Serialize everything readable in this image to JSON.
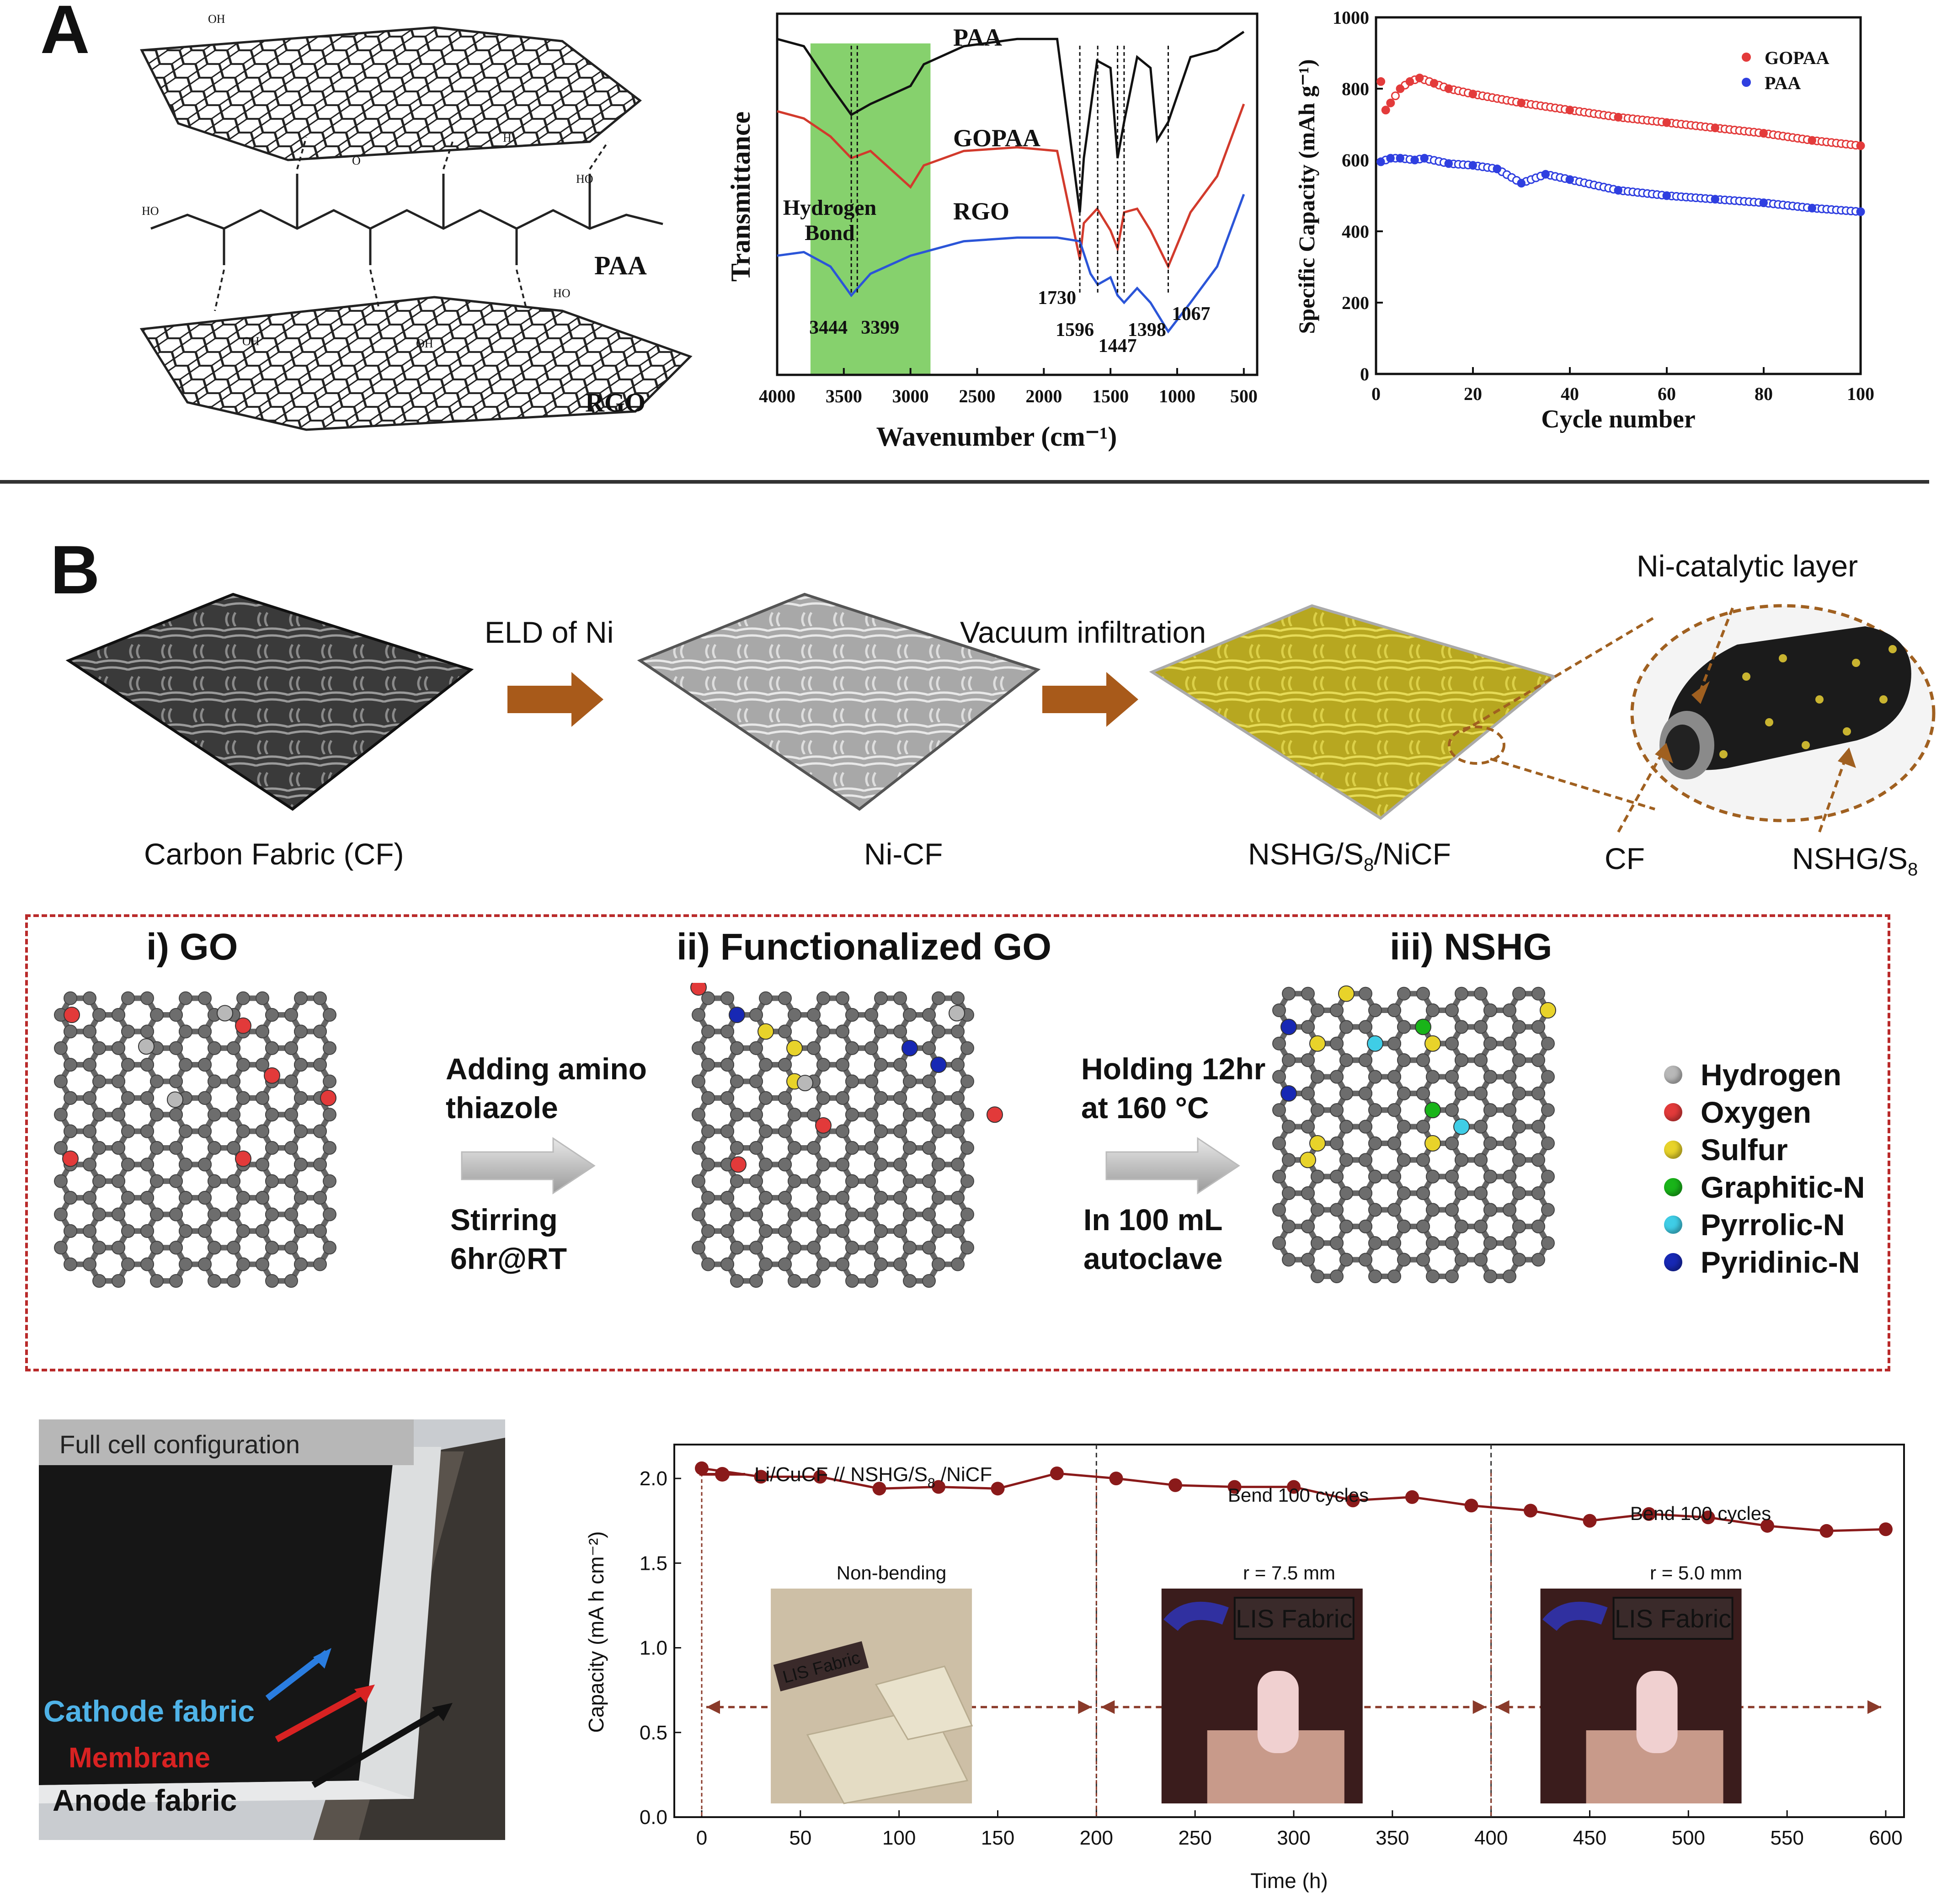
{
  "panelA": {
    "letter": "A",
    "scheme": {
      "labels": {
        "paa": "PAA",
        "rgo": "RGO",
        "oh": "OH",
        "ho": "HO",
        "o": "O",
        "h": "H"
      }
    },
    "ftir": {
      "ylabel": "Transmittance",
      "xlabel": "Wavenumber (cm⁻¹)",
      "xticks": [
        "4000",
        "3500",
        "3000",
        "2500",
        "2000",
        "1500",
        "1000",
        "500"
      ],
      "series_labels": {
        "paa": "PAA",
        "gopaa": "GOPAA",
        "rgo": "RGO"
      },
      "band_label_1": "Hydrogen",
      "band_label_2": "Bond",
      "peaks": [
        "3444",
        "3399",
        "1730",
        "1596",
        "1447",
        "1398",
        "1067"
      ],
      "colors": {
        "paa": "#111111",
        "gopaa": "#d23a2c",
        "rgo": "#2b55d8",
        "band": "#86d16d"
      }
    },
    "cycling": {
      "ylabel": "Specific Capacity (mAh g⁻¹)",
      "xlabel": "Cycle number",
      "yticks": [
        "0",
        "200",
        "400",
        "600",
        "800",
        "1000"
      ],
      "xticks": [
        "0",
        "20",
        "40",
        "60",
        "80",
        "100"
      ],
      "legend": [
        "GOPAA",
        "PAA"
      ],
      "colors": {
        "gopaa": "#e33b3b",
        "paa": "#2f3fe0"
      }
    }
  },
  "panelB": {
    "letter": "B",
    "fabrics": {
      "arrow1": "ELD of Ni",
      "arrow2": "Vacuum infiltration",
      "cf": "Carbon Fabric (CF)",
      "nicf": "Ni-CF",
      "nshg_prefix": "NSHG/S",
      "nshg_sub": "8",
      "nshg_suffix": "/NiCF",
      "ni_layer": "Ni-catalytic layer",
      "cf_short": "CF",
      "nshg_s8_prefix": "NSHG/S",
      "nshg_s8_sub": "8"
    },
    "synthesis": {
      "go": "i) GO",
      "fgo": "ii) Functionalized GO",
      "nshg": "iii) NSHG",
      "step1_line1": "Adding amino",
      "step1_line2": "thiazole",
      "step1_line3": "Stirring",
      "step1_line4": "6hr@RT",
      "step2_line1": "Holding 12hr",
      "step2_line2": "at 160 °C",
      "step2_line3": "In 100 mL",
      "step2_line4": "autoclave",
      "legend": [
        {
          "label": "Hydrogen",
          "color": "#b8b8b8"
        },
        {
          "label": "Oxygen",
          "color": "#e23a3a"
        },
        {
          "label": "Sulfur",
          "color": "#e8d32a"
        },
        {
          "label": "Graphitic-N",
          "color": "#19b419"
        },
        {
          "label": "Pyrrolic-N",
          "color": "#3fcde6"
        },
        {
          "label": "Pyridinic-N",
          "color": "#1728b4"
        }
      ]
    },
    "fullcell": {
      "title": "Full cell configuration",
      "cathode": "Cathode fabric",
      "membrane": "Membrane",
      "anode": "Anode fabric"
    },
    "bend_chart": {
      "legend_prefix": "Li/CuCF // NSHG/S",
      "legend_sub": "8",
      "legend_suffix": " /NiCF",
      "ylabel": "Capacity (mA h cm⁻²)",
      "xlabel": "Time (h)",
      "seg1": "Non-bending",
      "seg2_top": "Bend 100 cycles",
      "seg2_r": "r = 7.5 mm",
      "seg3_top": "Bend 100 cycles",
      "seg3_r": "r = 5.0 mm",
      "led_text": "LIS Fabric",
      "xticks": [
        "0",
        "50",
        "100",
        "150",
        "200",
        "250",
        "300",
        "350",
        "400",
        "450",
        "500",
        "550",
        "600"
      ],
      "yticks": [
        "0.0",
        "0.5",
        "1.0",
        "1.5",
        "2.0"
      ],
      "color": "#8a1a1a"
    }
  },
  "chart_data": [
    {
      "type": "line",
      "xlabel": "Wavenumber (cm⁻¹)",
      "ylabel": "Transmittance",
      "xlim": [
        4000,
        400
      ],
      "series": [
        {
          "name": "PAA",
          "x": [
            4000,
            3800,
            3600,
            3444,
            3300,
            3000,
            2900,
            2600,
            2200,
            1900,
            1730,
            1700,
            1600,
            1500,
            1447,
            1398,
            1300,
            1200,
            1150,
            1067,
            900,
            700,
            500
          ],
          "values": [
            0.93,
            0.91,
            0.8,
            0.72,
            0.75,
            0.8,
            0.86,
            0.91,
            0.93,
            0.93,
            0.45,
            0.6,
            0.87,
            0.85,
            0.6,
            0.7,
            0.88,
            0.85,
            0.65,
            0.7,
            0.88,
            0.9,
            0.95
          ]
        },
        {
          "name": "GOPAA",
          "x": [
            4000,
            3800,
            3600,
            3444,
            3300,
            3000,
            2900,
            2600,
            2200,
            1900,
            1730,
            1700,
            1600,
            1500,
            1447,
            1398,
            1300,
            1200,
            1067,
            900,
            700,
            500
          ],
          "values": [
            0.73,
            0.71,
            0.66,
            0.6,
            0.62,
            0.52,
            0.58,
            0.62,
            0.63,
            0.62,
            0.32,
            0.42,
            0.46,
            0.4,
            0.35,
            0.45,
            0.46,
            0.4,
            0.3,
            0.45,
            0.55,
            0.75
          ]
        },
        {
          "name": "RGO",
          "x": [
            4000,
            3800,
            3600,
            3444,
            3300,
            3000,
            2900,
            2600,
            2200,
            1900,
            1730,
            1650,
            1596,
            1500,
            1447,
            1398,
            1300,
            1200,
            1067,
            900,
            700,
            500
          ],
          "values": [
            0.33,
            0.34,
            0.3,
            0.22,
            0.28,
            0.33,
            0.34,
            0.37,
            0.38,
            0.38,
            0.37,
            0.28,
            0.25,
            0.27,
            0.22,
            0.2,
            0.24,
            0.2,
            0.12,
            0.2,
            0.3,
            0.5
          ]
        }
      ]
    },
    {
      "type": "scatter",
      "xlabel": "Cycle number",
      "ylabel": "Specific Capacity (mAh g⁻¹)",
      "xlim": [
        0,
        100
      ],
      "ylim": [
        0,
        1000
      ],
      "series": [
        {
          "name": "GOPAA",
          "x": [
            1,
            2,
            3,
            5,
            7,
            9,
            12,
            15,
            20,
            30,
            40,
            50,
            60,
            70,
            80,
            90,
            100
          ],
          "values": [
            820,
            740,
            760,
            800,
            820,
            830,
            815,
            800,
            785,
            760,
            740,
            720,
            705,
            690,
            675,
            655,
            640
          ]
        },
        {
          "name": "PAA",
          "x": [
            1,
            3,
            5,
            8,
            10,
            15,
            20,
            25,
            30,
            35,
            40,
            50,
            60,
            70,
            80,
            90,
            100
          ],
          "values": [
            595,
            605,
            605,
            600,
            605,
            590,
            585,
            575,
            535,
            560,
            545,
            515,
            500,
            490,
            480,
            465,
            455
          ]
        }
      ]
    },
    {
      "type": "line",
      "xlabel": "Time (h)",
      "ylabel": "Capacity (mA h cm⁻²)",
      "xlim": [
        0,
        600
      ],
      "ylim": [
        0.0,
        2.2
      ],
      "series": [
        {
          "name": "Li/CuCF // NSHG/S8 /NiCF",
          "x": [
            0,
            30,
            60,
            90,
            120,
            150,
            180,
            210,
            240,
            270,
            300,
            330,
            360,
            390,
            420,
            450,
            480,
            510,
            540,
            570,
            600
          ],
          "values": [
            2.06,
            2.01,
            2.01,
            1.94,
            1.95,
            1.94,
            2.03,
            2.0,
            1.96,
            1.95,
            1.95,
            1.87,
            1.89,
            1.84,
            1.81,
            1.75,
            1.79,
            1.77,
            1.72,
            1.69,
            1.7
          ]
        }
      ]
    }
  ]
}
